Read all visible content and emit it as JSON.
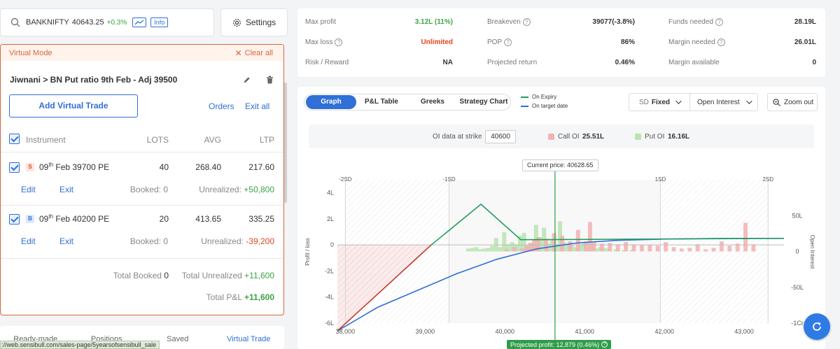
{
  "search": {
    "symbol": "BANKNIFTY",
    "price": "40643.25",
    "change": "+0.3%",
    "info_label": "Info"
  },
  "settings_label": "Settings",
  "virtual": {
    "mode_label": "Virtual Mode",
    "clear_label": "Clear all",
    "strategy_name": "Jiwnani > BN Put ratio 9th Feb - Adj 39500",
    "add_trade_label": "Add Virtual Trade",
    "orders_label": "Orders",
    "exit_all_label": "Exit all",
    "columns": {
      "instrument": "Instrument",
      "lots": "LOTS",
      "avg": "AVG",
      "ltp": "LTP"
    },
    "positions": [
      {
        "side": "S",
        "day": "09",
        "sup": "th",
        "rest": "Feb 39700 PE",
        "lots": "40",
        "avg": "268.40",
        "ltp": "217.60",
        "edit": "Edit",
        "exit": "Exit",
        "booked_label": "Booked:",
        "booked": "0",
        "unreal_label": "Unrealized:",
        "unreal": "+50,800"
      },
      {
        "side": "B",
        "day": "09",
        "sup": "th",
        "rest": "Feb 40200 PE",
        "lots": "20",
        "avg": "413.65",
        "ltp": "335.25",
        "edit": "Edit",
        "exit": "Exit",
        "booked_label": "Booked:",
        "booked": "0",
        "unreal_label": "Unrealized:",
        "unreal": "-39,200"
      }
    ],
    "totals": {
      "booked_label": "Total Booked",
      "booked": "0",
      "unreal_label": "Total Unrealized",
      "unreal": "+11,600",
      "pnl_label": "Total P&L",
      "pnl": "+11,600"
    }
  },
  "bottom_tabs": [
    "Ready-made",
    "Positions",
    "Saved",
    "Virtual Trade"
  ],
  "status_url": "://web.sensibull.com/sales-page/5yearsofsensibull_sale",
  "metrics": [
    [
      {
        "label": "Max profit",
        "value": "3.12L (11%)",
        "q": false
      },
      {
        "label": "Breakeven",
        "value": "39077(-3.8%)",
        "q": true
      },
      {
        "label": "Funds needed",
        "value": "28.19L",
        "q": true
      }
    ],
    [
      {
        "label": "Max loss",
        "value": "Unlimited",
        "q": true
      },
      {
        "label": "POP",
        "value": "86%",
        "q": true
      },
      {
        "label": "Margin needed",
        "value": "26.01L",
        "q": true
      }
    ],
    [
      {
        "label": "Risk / Reward",
        "value": "NA",
        "q": false
      },
      {
        "label": "Projected return",
        "value": "0.46%",
        "q": false
      },
      {
        "label": "Margin available",
        "value": "0",
        "q": false
      }
    ]
  ],
  "tabs": {
    "graph": "Graph",
    "pnl_table": "P&L Table",
    "greeks": "Greeks",
    "strategy_chart": "Strategy Chart"
  },
  "legend": {
    "expiry": "On Expiry",
    "target": "On target date"
  },
  "sd_label": "SD",
  "sd_value": "Fixed",
  "oi_select": "Open Interest",
  "zoom_label": "Zoom out",
  "oi_bar": {
    "label": "OI data at strike",
    "strike": "40600",
    "call_label": "Call OI",
    "call_value": "25.51L",
    "put_label": "Put OI",
    "put_value": "16.16L"
  },
  "current_price_label": "Current price: 40628.65",
  "projected_label": "Projected profit: 12,879 (0.46%)",
  "colors": {
    "accent": "#2f6fd6",
    "profit": "#3aa544",
    "loss": "#e0451f",
    "mode_bg": "#fff3ec",
    "mode_border": "#d9653b"
  },
  "chart_data": {
    "type": "line",
    "xlabel": "",
    "ylabel": "Profit / loss",
    "y2label": "Open Interest",
    "xlim": [
      37900,
      43500
    ],
    "ylim": [
      -6,
      5
    ],
    "y2lim": [
      -100,
      100
    ],
    "x_ticks": [
      {
        "v": 38000,
        "label": "38,000"
      },
      {
        "v": 39000,
        "label": "39,000"
      },
      {
        "v": 40000,
        "label": "40,000"
      },
      {
        "v": 41000,
        "label": "41,000"
      },
      {
        "v": 42000,
        "label": "42,000"
      },
      {
        "v": 43000,
        "label": "43,000"
      }
    ],
    "y_ticks": [
      {
        "v": 4,
        "label": "4L"
      },
      {
        "v": 2,
        "label": "2L"
      },
      {
        "v": 0,
        "label": "0"
      },
      {
        "v": -2,
        "label": "-2L"
      },
      {
        "v": -4,
        "label": "-4L"
      },
      {
        "v": -6,
        "label": "-6L"
      }
    ],
    "y2_ticks": [
      {
        "v": 50,
        "label": "50L"
      },
      {
        "v": 0,
        "label": "0"
      },
      {
        "v": -50,
        "label": "-50L"
      },
      {
        "v": -100,
        "label": "-1Cr"
      }
    ],
    "sd_marks": [
      {
        "v": 38000,
        "label": "-2SD"
      },
      {
        "v": 39300,
        "label": "-1SD"
      },
      {
        "v": 41950,
        "label": "1SD"
      },
      {
        "v": 43300,
        "label": "2SD"
      }
    ],
    "current_price": 40628.65,
    "series": [
      {
        "name": "On Expiry",
        "color": "#1e9e5a",
        "points": [
          [
            37900,
            -6.6
          ],
          [
            39077,
            0
          ],
          [
            39700,
            3.12
          ],
          [
            40200,
            0.4
          ],
          [
            43500,
            0.5
          ]
        ]
      },
      {
        "name": "On target date",
        "color": "#2f6fd6",
        "points": [
          [
            37900,
            -6.6
          ],
          [
            38400,
            -4.8
          ],
          [
            38900,
            -3.5
          ],
          [
            39400,
            -2.2
          ],
          [
            39900,
            -1.1
          ],
          [
            40400,
            -0.3
          ],
          [
            40900,
            0.15
          ],
          [
            41400,
            0.35
          ],
          [
            42000,
            0.45
          ],
          [
            42800,
            0.5
          ],
          [
            43500,
            0.5
          ]
        ]
      }
    ],
    "put_oi": [
      [
        39550,
        4
      ],
      [
        39600,
        5
      ],
      [
        39650,
        6
      ],
      [
        39700,
        3
      ],
      [
        39750,
        4
      ],
      [
        39800,
        5
      ],
      [
        39850,
        8
      ],
      [
        39900,
        19
      ],
      [
        39950,
        6
      ],
      [
        40000,
        27
      ],
      [
        40050,
        10
      ],
      [
        40100,
        13
      ],
      [
        40150,
        10
      ],
      [
        40200,
        22
      ],
      [
        40250,
        26
      ],
      [
        40300,
        9
      ],
      [
        40350,
        12
      ],
      [
        40400,
        37
      ],
      [
        40450,
        20
      ],
      [
        40500,
        33
      ],
      [
        40550,
        11
      ],
      [
        40600,
        16
      ],
      [
        40650,
        10
      ],
      [
        40700,
        42
      ],
      [
        40750,
        13
      ],
      [
        40800,
        9
      ],
      [
        40850,
        8
      ],
      [
        40900,
        6
      ],
      [
        40950,
        10
      ],
      [
        41000,
        12
      ],
      [
        41050,
        5
      ],
      [
        41100,
        8
      ],
      [
        41150,
        4
      ],
      [
        41200,
        6
      ],
      [
        41250,
        5
      ],
      [
        41300,
        4
      ],
      [
        41400,
        3
      ],
      [
        41500,
        2
      ],
      [
        41600,
        2
      ]
    ],
    "call_oi": [
      [
        40000,
        3
      ],
      [
        40100,
        6
      ],
      [
        40200,
        4
      ],
      [
        40250,
        8
      ],
      [
        40300,
        12
      ],
      [
        40350,
        16
      ],
      [
        40400,
        20
      ],
      [
        40500,
        18
      ],
      [
        40600,
        25.51
      ],
      [
        40700,
        22
      ],
      [
        40800,
        14
      ],
      [
        40900,
        30
      ],
      [
        41000,
        14
      ],
      [
        41050,
        41
      ],
      [
        41100,
        13
      ],
      [
        41200,
        11
      ],
      [
        41300,
        12
      ],
      [
        41400,
        10
      ],
      [
        41500,
        13
      ],
      [
        41600,
        10
      ],
      [
        41700,
        9
      ],
      [
        41800,
        9
      ],
      [
        41900,
        8
      ],
      [
        42000,
        13
      ],
      [
        42100,
        6
      ],
      [
        42200,
        4
      ],
      [
        42300,
        5
      ],
      [
        42400,
        10
      ],
      [
        42500,
        3
      ],
      [
        42600,
        5
      ],
      [
        42700,
        14
      ],
      [
        42800,
        8
      ],
      [
        42900,
        11
      ],
      [
        43000,
        40
      ],
      [
        43100,
        10
      ]
    ]
  }
}
